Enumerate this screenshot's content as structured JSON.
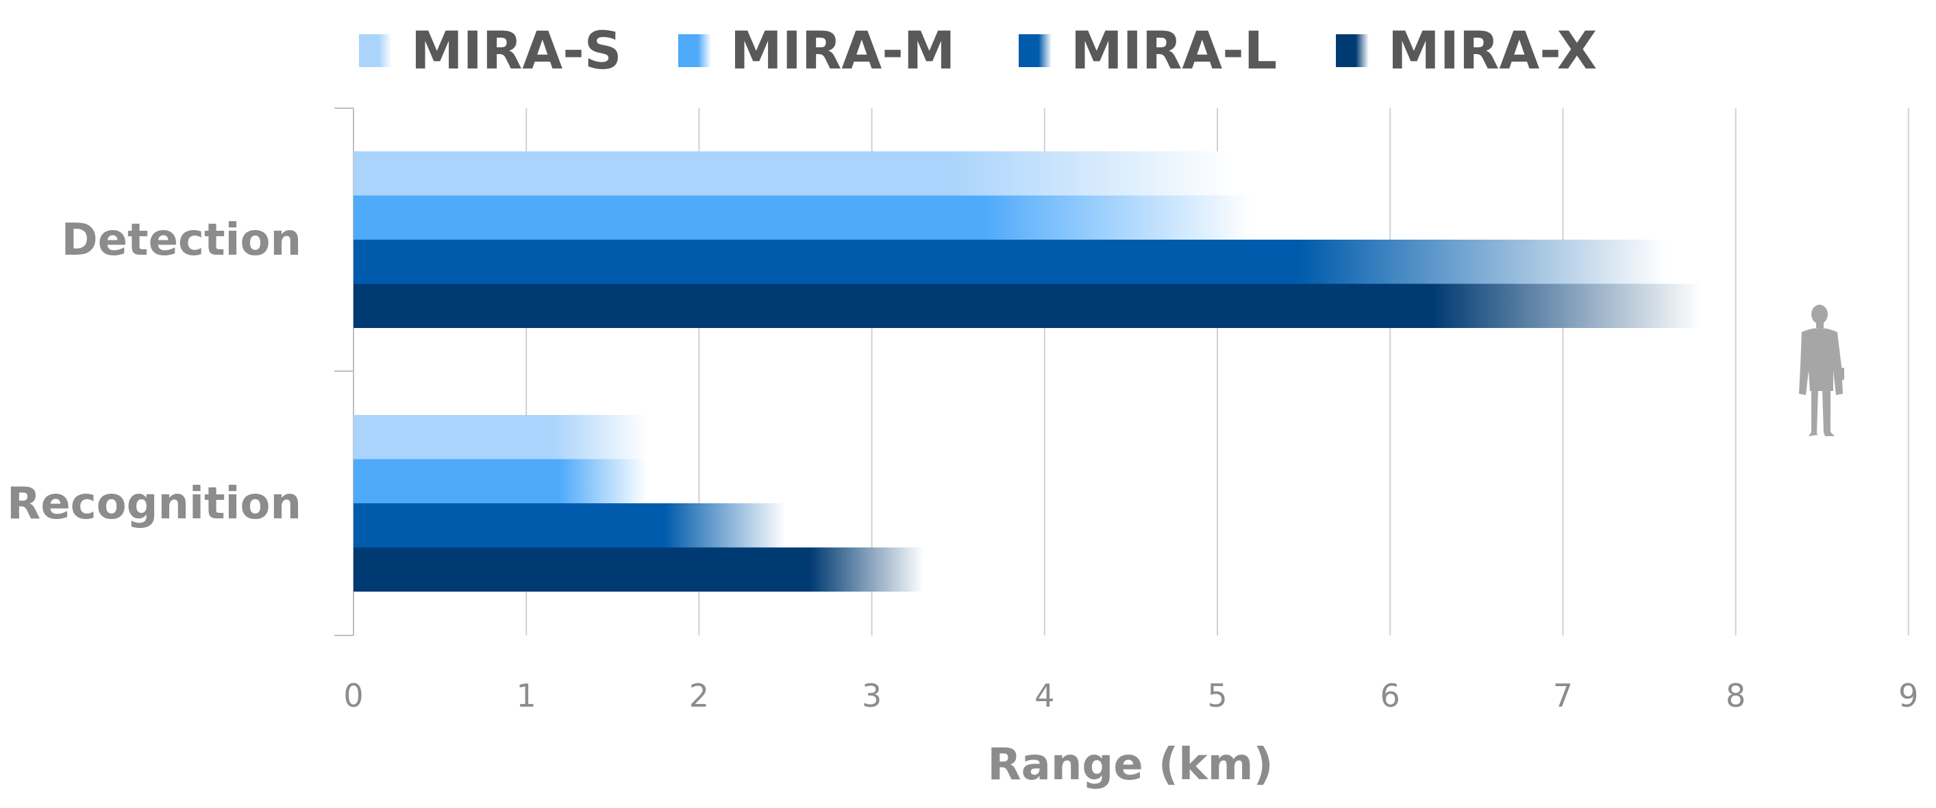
{
  "chart_data": {
    "type": "bar",
    "orientation": "horizontal",
    "categories": [
      "Detection",
      "Recognition"
    ],
    "series": [
      {
        "name": "MIRA-S",
        "color": "#aad4fb",
        "values": [
          5.1,
          1.7
        ]
      },
      {
        "name": "MIRA-M",
        "color": "#4faafa",
        "values": [
          5.2,
          1.7
        ]
      },
      {
        "name": "MIRA-L",
        "color": "#005bac",
        "values": [
          7.6,
          2.5
        ]
      },
      {
        "name": "MIRA-X",
        "color": "#003a72",
        "values": [
          7.8,
          3.3
        ]
      }
    ],
    "xlabel": "Range (km)",
    "xlim": [
      0,
      9
    ],
    "xticks": [
      0,
      1,
      2,
      3,
      4,
      5,
      6,
      7,
      8,
      9
    ],
    "grid": true,
    "legend_position": "top",
    "bar_style": "gradient fading to white at the end",
    "decoration": "person-silhouette-icon"
  }
}
